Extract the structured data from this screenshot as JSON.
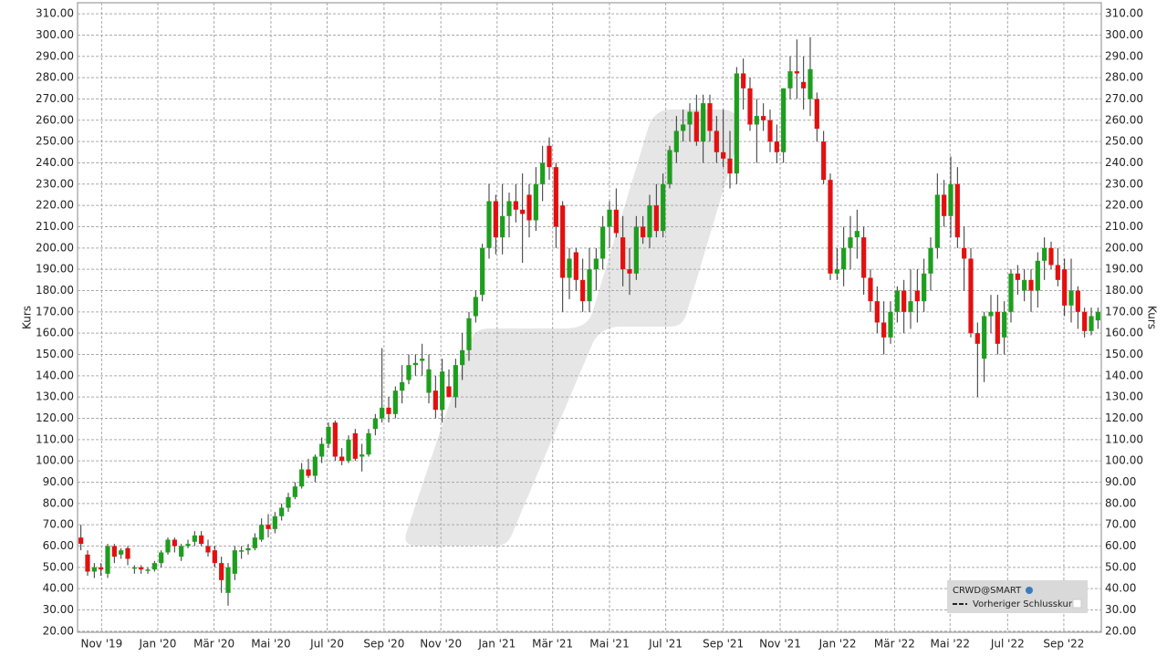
{
  "chart_data": {
    "type": "candlestick",
    "y_label": "Kurs",
    "legend": {
      "title": "CRWD@SMART",
      "entry": "Vorheriger Schlusskurs"
    },
    "up_color": "#1e9e1e",
    "down_color": "#e31010",
    "grid": true,
    "ylim": [
      19.5,
      315.2
    ],
    "yticks": [
      {
        "value": 20,
        "label": "20.00"
      },
      {
        "value": 30,
        "label": "30.00"
      },
      {
        "value": 40,
        "label": "40.00"
      },
      {
        "value": 50,
        "label": "50.00"
      },
      {
        "value": 60,
        "label": "60.00"
      },
      {
        "value": 70,
        "label": "70.00"
      },
      {
        "value": 80,
        "label": "80.00"
      },
      {
        "value": 90,
        "label": "90.00"
      },
      {
        "value": 100,
        "label": "100.00"
      },
      {
        "value": 110,
        "label": "110.00"
      },
      {
        "value": 120,
        "label": "120.00"
      },
      {
        "value": 130,
        "label": "130.00"
      },
      {
        "value": 140,
        "label": "140.00"
      },
      {
        "value": 150,
        "label": "150.00"
      },
      {
        "value": 160,
        "label": "160.00"
      },
      {
        "value": 170,
        "label": "170.00"
      },
      {
        "value": 180,
        "label": "180.00"
      },
      {
        "value": 190,
        "label": "190.00"
      },
      {
        "value": 200,
        "label": "200.00"
      },
      {
        "value": 210,
        "label": "210.00"
      },
      {
        "value": 220,
        "label": "220.00"
      },
      {
        "value": 230,
        "label": "230.00"
      },
      {
        "value": 240,
        "label": "240.00"
      },
      {
        "value": 250,
        "label": "250.00"
      },
      {
        "value": 260,
        "label": "260.00"
      },
      {
        "value": 270,
        "label": "270.00"
      },
      {
        "value": 280,
        "label": "280.00"
      },
      {
        "value": 290,
        "label": "290.00"
      },
      {
        "value": 300,
        "label": "300.00"
      },
      {
        "value": 310,
        "label": "310.00"
      }
    ],
    "xlim": [
      -0.5,
      152.5
    ],
    "xticks": [
      {
        "value": 3.1,
        "label": "Nov '19"
      },
      {
        "value": 11.5,
        "label": "Jan '20"
      },
      {
        "value": 19.9,
        "label": "Mär '20"
      },
      {
        "value": 28.4,
        "label": "Mai '20"
      },
      {
        "value": 36.8,
        "label": "Jul '20"
      },
      {
        "value": 45.3,
        "label": "Sep '20"
      },
      {
        "value": 53.8,
        "label": "Nov '20"
      },
      {
        "value": 62.2,
        "label": "Jan '21"
      },
      {
        "value": 70.5,
        "label": "Mär '21"
      },
      {
        "value": 79.0,
        "label": "Mai '21"
      },
      {
        "value": 87.4,
        "label": "Jul '21"
      },
      {
        "value": 96.0,
        "label": "Sep '21"
      },
      {
        "value": 104.5,
        "label": "Nov '21"
      },
      {
        "value": 113.1,
        "label": "Jan '22"
      },
      {
        "value": 121.6,
        "label": "Mär '22"
      },
      {
        "value": 129.9,
        "label": "Mai '22"
      },
      {
        "value": 138.5,
        "label": "Jul '22"
      },
      {
        "value": 146.9,
        "label": "Sep '22"
      }
    ],
    "ohlc": [
      [
        64,
        70,
        58,
        61
      ],
      [
        56,
        58,
        46,
        48
      ],
      [
        48,
        52,
        45,
        50
      ],
      [
        50,
        52,
        46,
        49
      ],
      [
        47,
        61,
        45,
        60
      ],
      [
        60,
        61,
        52,
        55
      ],
      [
        56,
        59,
        54,
        58
      ],
      [
        59,
        60,
        51,
        54
      ],
      [
        50,
        51,
        47,
        50
      ],
      [
        50,
        51,
        47,
        49
      ],
      [
        49,
        50,
        47,
        49
      ],
      [
        49,
        53,
        48,
        52
      ],
      [
        52,
        58,
        50,
        57
      ],
      [
        57,
        64,
        56,
        63
      ],
      [
        63,
        64,
        57,
        60
      ],
      [
        55,
        61,
        53,
        60
      ],
      [
        60,
        63,
        59,
        61
      ],
      [
        62,
        67,
        60,
        65
      ],
      [
        65,
        67,
        60,
        61
      ],
      [
        60,
        63,
        55,
        57
      ],
      [
        58,
        60,
        50,
        52
      ],
      [
        52,
        55,
        38,
        44
      ],
      [
        38,
        52,
        32,
        50
      ],
      [
        47,
        60,
        44,
        58
      ],
      [
        58,
        60,
        54,
        58
      ],
      [
        58,
        61,
        56,
        59
      ],
      [
        59,
        66,
        58,
        64
      ],
      [
        63,
        73,
        62,
        70
      ],
      [
        70,
        75,
        64,
        68
      ],
      [
        68,
        76,
        66,
        74
      ],
      [
        74,
        80,
        72,
        78
      ],
      [
        78,
        85,
        76,
        83
      ],
      [
        83,
        90,
        82,
        88
      ],
      [
        88,
        99,
        87,
        96
      ],
      [
        96,
        101,
        92,
        93
      ],
      [
        93,
        103,
        90,
        102
      ],
      [
        102,
        111,
        99,
        108
      ],
      [
        108,
        118,
        106,
        116
      ],
      [
        118,
        119,
        100,
        102
      ],
      [
        102,
        106,
        98,
        100
      ],
      [
        100,
        112,
        99,
        110
      ],
      [
        113,
        115,
        100,
        101
      ],
      [
        102,
        108,
        95,
        103
      ],
      [
        103,
        115,
        102,
        113
      ],
      [
        115,
        122,
        112,
        120
      ],
      [
        120,
        153,
        118,
        125
      ],
      [
        125,
        130,
        118,
        122
      ],
      [
        122,
        135,
        120,
        133
      ],
      [
        133,
        145,
        127,
        137
      ],
      [
        138,
        150,
        136,
        145
      ],
      [
        145,
        150,
        140,
        146
      ],
      [
        147,
        155,
        140,
        148
      ],
      [
        132,
        150,
        127,
        143
      ],
      [
        133,
        140,
        120,
        124
      ],
      [
        124,
        148,
        118,
        142
      ],
      [
        135,
        143,
        130,
        130
      ],
      [
        130,
        148,
        125,
        145
      ],
      [
        145,
        160,
        138,
        152
      ],
      [
        152,
        170,
        147,
        167
      ],
      [
        168,
        180,
        165,
        177
      ],
      [
        178,
        202,
        175,
        200
      ],
      [
        200,
        230,
        195,
        222
      ],
      [
        222,
        225,
        197,
        205
      ],
      [
        205,
        230,
        197,
        215
      ],
      [
        215,
        226,
        205,
        222
      ],
      [
        222,
        230,
        212,
        218
      ],
      [
        218,
        235,
        193,
        216
      ],
      [
        225,
        230,
        205,
        213
      ],
      [
        213,
        238,
        208,
        230
      ],
      [
        230,
        248,
        222,
        240
      ],
      [
        248,
        252,
        232,
        238
      ],
      [
        238,
        240,
        200,
        210
      ],
      [
        220,
        222,
        170,
        186
      ],
      [
        186,
        200,
        176,
        195
      ],
      [
        198,
        200,
        180,
        185
      ],
      [
        185,
        195,
        170,
        175
      ],
      [
        175,
        200,
        170,
        190
      ],
      [
        190,
        200,
        180,
        195
      ],
      [
        195,
        215,
        190,
        210
      ],
      [
        210,
        222,
        200,
        218
      ],
      [
        218,
        228,
        205,
        207
      ],
      [
        205,
        215,
        182,
        190
      ],
      [
        190,
        200,
        178,
        188
      ],
      [
        188,
        215,
        185,
        210
      ],
      [
        210,
        215,
        202,
        205
      ],
      [
        205,
        225,
        200,
        220
      ],
      [
        220,
        230,
        205,
        208
      ],
      [
        208,
        235,
        205,
        230
      ],
      [
        230,
        248,
        228,
        246
      ],
      [
        245,
        262,
        240,
        255
      ],
      [
        255,
        265,
        250,
        258
      ],
      [
        258,
        268,
        250,
        264
      ],
      [
        264,
        272,
        248,
        250
      ],
      [
        250,
        272,
        240,
        268
      ],
      [
        268,
        272,
        250,
        255
      ],
      [
        255,
        262,
        240,
        245
      ],
      [
        245,
        265,
        238,
        242
      ],
      [
        242,
        255,
        228,
        235
      ],
      [
        235,
        285,
        230,
        282
      ],
      [
        282,
        289,
        265,
        275
      ],
      [
        275,
        280,
        255,
        258
      ],
      [
        258,
        270,
        240,
        262
      ],
      [
        262,
        268,
        255,
        260
      ],
      [
        260,
        265,
        245,
        250
      ],
      [
        250,
        258,
        240,
        245
      ],
      [
        245,
        275,
        240,
        275
      ],
      [
        275,
        290,
        270,
        283
      ],
      [
        283,
        298,
        270,
        282
      ],
      [
        278,
        290,
        265,
        275
      ],
      [
        270,
        299,
        262,
        284
      ],
      [
        270,
        273,
        250,
        256
      ],
      [
        250,
        255,
        230,
        232
      ],
      [
        232,
        235,
        185,
        188
      ],
      [
        188,
        200,
        185,
        190
      ],
      [
        190,
        210,
        182,
        200
      ],
      [
        200,
        215,
        190,
        205
      ],
      [
        205,
        218,
        195,
        208
      ],
      [
        205,
        210,
        178,
        186
      ],
      [
        186,
        190,
        170,
        175
      ],
      [
        175,
        182,
        160,
        165
      ],
      [
        165,
        175,
        150,
        158
      ],
      [
        158,
        175,
        155,
        170
      ],
      [
        170,
        182,
        165,
        180
      ],
      [
        180,
        185,
        160,
        170
      ],
      [
        170,
        190,
        162,
        175
      ],
      [
        180,
        190,
        165,
        175
      ],
      [
        175,
        195,
        170,
        188
      ],
      [
        188,
        205,
        180,
        200
      ],
      [
        200,
        235,
        195,
        225
      ],
      [
        225,
        232,
        210,
        215
      ],
      [
        215,
        243,
        205,
        230
      ],
      [
        230,
        238,
        200,
        205
      ],
      [
        200,
        210,
        180,
        195
      ],
      [
        195,
        200,
        158,
        160
      ],
      [
        160,
        165,
        130,
        155
      ],
      [
        148,
        170,
        137,
        168
      ],
      [
        168,
        178,
        160,
        170
      ],
      [
        170,
        178,
        150,
        155
      ],
      [
        158,
        175,
        150,
        170
      ],
      [
        170,
        190,
        165,
        188
      ],
      [
        188,
        192,
        178,
        185
      ],
      [
        180,
        190,
        175,
        185
      ],
      [
        185,
        190,
        170,
        180
      ],
      [
        180,
        198,
        172,
        194
      ],
      [
        194,
        205,
        185,
        200
      ],
      [
        200,
        203,
        190,
        192
      ],
      [
        192,
        200,
        182,
        185
      ],
      [
        190,
        195,
        168,
        173
      ],
      [
        173,
        195,
        165,
        180
      ],
      [
        180,
        182,
        162,
        170
      ],
      [
        170,
        172,
        158,
        161
      ],
      [
        161,
        172,
        159,
        168
      ],
      [
        166,
        172,
        162,
        170
      ]
    ]
  }
}
